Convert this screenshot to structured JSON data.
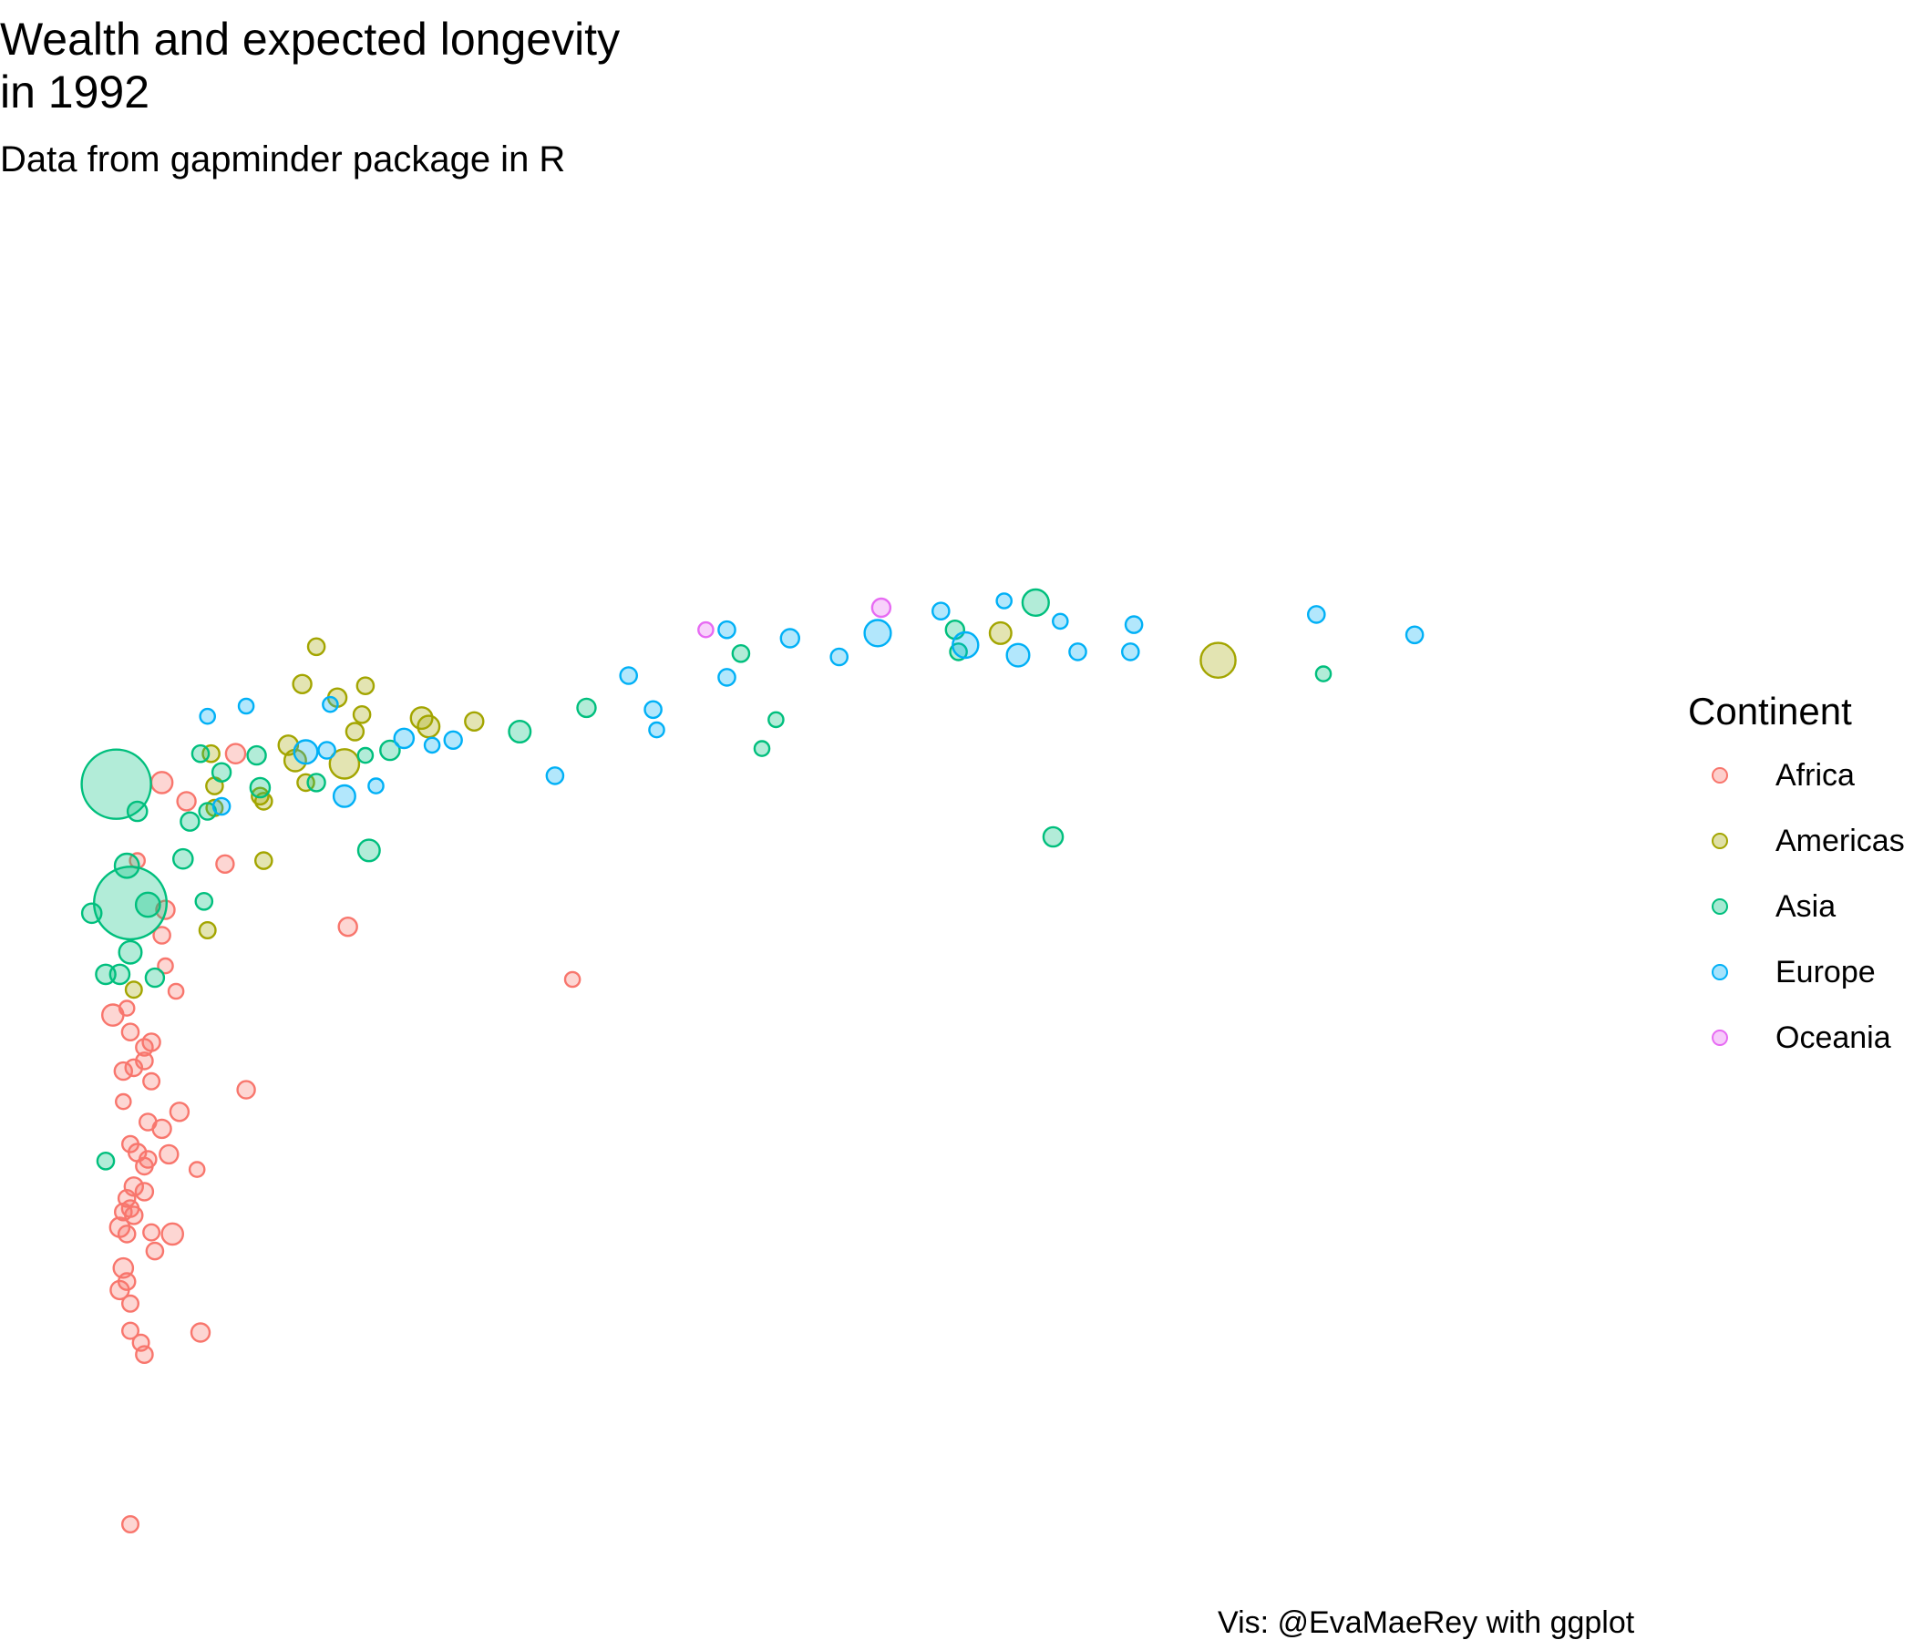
{
  "title": "Wealth and expected longevity\n in 1992",
  "subtitle": "Data from gapminder package in R",
  "caption": "Vis: @EvaMaeRey with ggplot",
  "legend": {
    "title": "Continent",
    "items": [
      {
        "label": "Africa",
        "color": "#F8766D"
      },
      {
        "label": "Americas",
        "color": "#A3A500"
      },
      {
        "label": "Asia",
        "color": "#00BF7D"
      },
      {
        "label": "Europe",
        "color": "#00B0F6"
      },
      {
        "label": "Oceania",
        "color": "#E76BF3"
      }
    ]
  },
  "chart_data": {
    "type": "scatter",
    "x_field": "gdpPercap",
    "y_field": "lifeExp",
    "size_field": "pop",
    "color_field": "continent",
    "axes_shown": false,
    "grid": false,
    "xlim": [
      0,
      50000
    ],
    "ylim": [
      20,
      80
    ],
    "legend_position": "right",
    "series": [
      {
        "name": "Africa",
        "color": "#F8766D",
        "points": [
          [
            2900,
            67.3,
            28
          ],
          [
            2200,
            62.7,
            5
          ],
          [
            5000,
            69.0,
            20
          ],
          [
            3600,
            66.2,
            15
          ],
          [
            4700,
            62.5,
            12
          ],
          [
            3000,
            59.8,
            15
          ],
          [
            8200,
            58.8,
            15
          ],
          [
            2900,
            58.3,
            10
          ],
          [
            3000,
            56.5,
            5
          ],
          [
            14600,
            55.7,
            5
          ],
          [
            3300,
            55.0,
            5
          ],
          [
            1900,
            54.0,
            5
          ],
          [
            1500,
            53.6,
            28
          ],
          [
            2000,
            52.6,
            10
          ],
          [
            2600,
            52.0,
            12
          ],
          [
            2400,
            51.7,
            10
          ],
          [
            2400,
            50.9,
            10
          ],
          [
            2100,
            50.5,
            10
          ],
          [
            1800,
            50.3,
            12
          ],
          [
            2600,
            49.7,
            8
          ],
          [
            5300,
            49.2,
            12
          ],
          [
            1800,
            48.5,
            5
          ],
          [
            3400,
            47.9,
            15
          ],
          [
            2500,
            47.3,
            10
          ],
          [
            2900,
            46.9,
            15
          ],
          [
            2000,
            46.0,
            8
          ],
          [
            2200,
            45.5,
            12
          ],
          [
            3100,
            45.4,
            15
          ],
          [
            2500,
            45.1,
            10
          ],
          [
            2400,
            44.7,
            10
          ],
          [
            3900,
            44.5,
            5
          ],
          [
            2100,
            43.5,
            15
          ],
          [
            2400,
            43.2,
            12
          ],
          [
            1900,
            42.8,
            10
          ],
          [
            2000,
            42.2,
            10
          ],
          [
            1800,
            42.0,
            10
          ],
          [
            2100,
            41.8,
            12
          ],
          [
            1700,
            41.1,
            20
          ],
          [
            1900,
            40.7,
            10
          ],
          [
            2600,
            40.8,
            8
          ],
          [
            3200,
            40.7,
            28
          ],
          [
            2700,
            39.7,
            10
          ],
          [
            1800,
            38.7,
            20
          ],
          [
            1900,
            37.9,
            10
          ],
          [
            1700,
            37.4,
            15
          ],
          [
            2000,
            36.6,
            8
          ],
          [
            2000,
            35.0,
            8
          ],
          [
            4000,
            34.9,
            15
          ],
          [
            2300,
            34.3,
            8
          ],
          [
            2400,
            33.6,
            10
          ],
          [
            2000,
            23.6,
            8
          ]
        ]
      },
      {
        "name": "Americas",
        "color": "#A3A500",
        "points": [
          [
            26800,
            76.1,
            30
          ],
          [
            33000,
            74.5,
            140
          ],
          [
            7300,
            75.3,
            10
          ],
          [
            6900,
            73.1,
            15
          ],
          [
            7900,
            72.3,
            15
          ],
          [
            8700,
            73.0,
            10
          ],
          [
            8600,
            71.3,
            10
          ],
          [
            10300,
            71.1,
            30
          ],
          [
            10500,
            70.6,
            30
          ],
          [
            11800,
            70.9,
            15
          ],
          [
            8400,
            70.3,
            12
          ],
          [
            6500,
            69.5,
            20
          ],
          [
            4300,
            69.0,
            10
          ],
          [
            6700,
            68.6,
            30
          ],
          [
            8100,
            68.4,
            85
          ],
          [
            7000,
            67.3,
            10
          ],
          [
            4400,
            67.1,
            10
          ],
          [
            5700,
            66.5,
            10
          ],
          [
            5800,
            66.2,
            10
          ],
          [
            4400,
            65.8,
            8
          ],
          [
            5800,
            62.7,
            10
          ],
          [
            4200,
            58.6,
            8
          ],
          [
            2100,
            55.1,
            8
          ]
        ]
      },
      {
        "name": "Asia",
        "color": "#00BF7D",
        "points": [
          [
            27800,
            77.9,
            60
          ],
          [
            25500,
            76.3,
            15
          ],
          [
            25600,
            75.0,
            10
          ],
          [
            19400,
            74.9,
            10
          ],
          [
            36000,
            73.7,
            5
          ],
          [
            15000,
            71.7,
            15
          ],
          [
            20400,
            71.0,
            5
          ],
          [
            13100,
            70.3,
            30
          ],
          [
            20000,
            69.3,
            5
          ],
          [
            9400,
            69.2,
            20
          ],
          [
            4000,
            69.0,
            10
          ],
          [
            5600,
            68.9,
            15
          ],
          [
            8700,
            68.9,
            5
          ],
          [
            7300,
            67.3,
            12
          ],
          [
            4600,
            67.9,
            15
          ],
          [
            1600,
            67.2,
            800
          ],
          [
            5700,
            67.0,
            20
          ],
          [
            4200,
            65.6,
            10
          ],
          [
            2200,
            65.6,
            20
          ],
          [
            3700,
            65.0,
            15
          ],
          [
            28300,
            64.1,
            20
          ],
          [
            8800,
            63.3,
            30
          ],
          [
            3500,
            62.8,
            20
          ],
          [
            1900,
            62.4,
            45
          ],
          [
            2500,
            60.1,
            45
          ],
          [
            2000,
            60.2,
            890
          ],
          [
            4100,
            60.3,
            10
          ],
          [
            900,
            59.6,
            20
          ],
          [
            2000,
            57.3,
            35
          ],
          [
            1300,
            56.0,
            20
          ],
          [
            1700,
            56.0,
            20
          ],
          [
            2700,
            55.8,
            15
          ],
          [
            1300,
            45.0,
            10
          ]
        ]
      },
      {
        "name": "Europe",
        "color": "#00B0F6",
        "points": [
          [
            26900,
            78.0,
            5
          ],
          [
            25100,
            77.4,
            10
          ],
          [
            35800,
            77.2,
            10
          ],
          [
            19000,
            76.3,
            10
          ],
          [
            23300,
            76.1,
            60
          ],
          [
            38600,
            76.0,
            10
          ],
          [
            20800,
            75.8,
            15
          ],
          [
            29000,
            75.0,
            10
          ],
          [
            27300,
            74.8,
            35
          ],
          [
            28500,
            76.8,
            5
          ],
          [
            30600,
            76.6,
            10
          ],
          [
            25800,
            75.4,
            55
          ],
          [
            30500,
            75.0,
            10
          ],
          [
            22200,
            74.7,
            10
          ],
          [
            19000,
            73.5,
            10
          ],
          [
            16200,
            73.6,
            10
          ],
          [
            7700,
            71.9,
            5
          ],
          [
            16900,
            71.6,
            10
          ],
          [
            17000,
            70.4,
            5
          ],
          [
            10600,
            69.5,
            5
          ],
          [
            9800,
            69.9,
            20
          ],
          [
            5300,
            71.8,
            5
          ],
          [
            4200,
            71.2,
            5
          ],
          [
            11200,
            69.8,
            12
          ],
          [
            7000,
            69.1,
            40
          ],
          [
            7600,
            69.2,
            10
          ],
          [
            8100,
            66.5,
            30
          ],
          [
            14100,
            67.7,
            10
          ],
          [
            4600,
            65.9,
            10
          ],
          [
            9000,
            67.1,
            5
          ]
        ]
      },
      {
        "name": "Oceania",
        "color": "#E76BF3",
        "points": [
          [
            23400,
            77.6,
            15
          ],
          [
            18400,
            76.3,
            5
          ]
        ]
      }
    ]
  }
}
